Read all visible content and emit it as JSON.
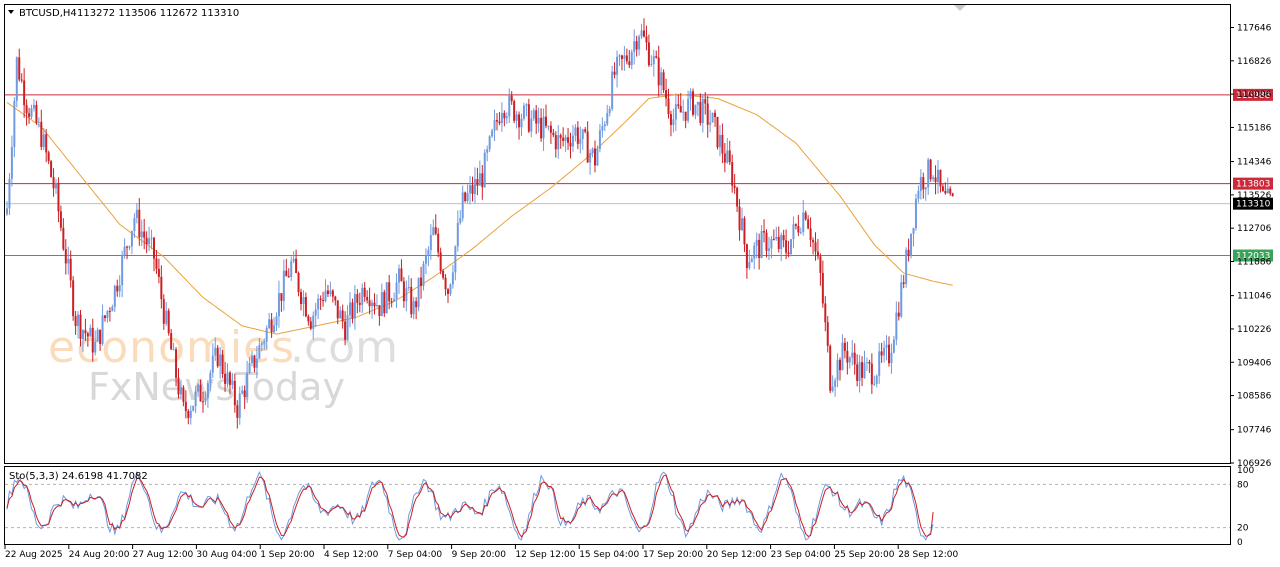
{
  "header": {
    "symbol": "BTCUSD,H4",
    "ohlc": "113272 113506 112672 113310"
  },
  "indicator": {
    "label": "Sto(5,3,3) 24.6198 41.7082"
  },
  "watermark": {
    "line1_a": "economies",
    "line1_b": ".com",
    "line2": "FxNewsToday"
  },
  "colors": {
    "bull": "#6f9ae0",
    "bear": "#cc1f24",
    "ma": "#e8a23c",
    "resistance": "#cc2a3a",
    "support": "#3aa35a",
    "current": "#c0c0c0",
    "stoch_main": "#6f9ae0",
    "stoch_signal": "#cc1f24"
  },
  "chart_data": {
    "type": "candlestick",
    "timeframe": "H4",
    "ylim": [
      106926,
      118200
    ],
    "price_ticks": [
      "117646",
      "116826",
      "116006",
      "115186",
      "114346",
      "113526",
      "112706",
      "111886",
      "111046",
      "110226",
      "109406",
      "108586",
      "107746",
      "106926"
    ],
    "time_ticks": [
      "22 Aug 2025",
      "24 Aug 20:00",
      "27 Aug 12:00",
      "30 Aug 04:00",
      "1 Sep 20:00",
      "4 Sep 12:00",
      "7 Sep 04:00",
      "9 Sep 20:00",
      "12 Sep 12:00",
      "15 Sep 04:00",
      "17 Sep 20:00",
      "20 Sep 12:00",
      "23 Sep 04:00",
      "25 Sep 20:00",
      "28 Sep 12:00"
    ],
    "levels": [
      {
        "label": "115988",
        "value": 115988,
        "kind": "resistance"
      },
      {
        "label": "113803",
        "value": 113803,
        "kind": "resistance"
      },
      {
        "label": "113310",
        "value": 113310,
        "kind": "current"
      },
      {
        "label": "112033",
        "value": 112033,
        "kind": "support"
      }
    ],
    "close_path": [
      [
        0,
        113200
      ],
      [
        4,
        116800
      ],
      [
        8,
        115800
      ],
      [
        14,
        115000
      ],
      [
        20,
        113500
      ],
      [
        28,
        110500
      ],
      [
        36,
        109800
      ],
      [
        44,
        111200
      ],
      [
        52,
        113000
      ],
      [
        60,
        112000
      ],
      [
        66,
        110000
      ],
      [
        72,
        108200
      ],
      [
        80,
        108700
      ],
      [
        86,
        109600
      ],
      [
        94,
        108300
      ],
      [
        100,
        109300
      ],
      [
        108,
        110500
      ],
      [
        116,
        111800
      ],
      [
        124,
        110500
      ],
      [
        130,
        111200
      ],
      [
        138,
        110300
      ],
      [
        146,
        111300
      ],
      [
        152,
        110800
      ],
      [
        160,
        111400
      ],
      [
        166,
        110700
      ],
      [
        174,
        112600
      ],
      [
        180,
        111200
      ],
      [
        186,
        113300
      ],
      [
        194,
        114000
      ],
      [
        202,
        115800
      ],
      [
        210,
        115500
      ],
      [
        218,
        115200
      ],
      [
        226,
        114800
      ],
      [
        232,
        115100
      ],
      [
        240,
        114400
      ],
      [
        248,
        116500
      ],
      [
        254,
        117000
      ],
      [
        258,
        117600
      ],
      [
        266,
        116500
      ],
      [
        272,
        115400
      ],
      [
        280,
        115800
      ],
      [
        288,
        115300
      ],
      [
        296,
        114000
      ],
      [
        302,
        112000
      ],
      [
        310,
        112400
      ],
      [
        318,
        112200
      ],
      [
        326,
        113200
      ],
      [
        332,
        111500
      ],
      [
        336,
        109000
      ],
      [
        342,
        109700
      ],
      [
        348,
        109200
      ],
      [
        354,
        109200
      ],
      [
        360,
        109600
      ],
      [
        366,
        111500
      ],
      [
        372,
        113800
      ],
      [
        378,
        114200
      ],
      [
        382,
        113400
      ],
      [
        386,
        113300
      ]
    ],
    "ma_path": [
      [
        0,
        115800
      ],
      [
        14,
        115200
      ],
      [
        30,
        114000
      ],
      [
        46,
        112800
      ],
      [
        64,
        112000
      ],
      [
        80,
        111000
      ],
      [
        96,
        110300
      ],
      [
        110,
        110100
      ],
      [
        126,
        110300
      ],
      [
        142,
        110500
      ],
      [
        158,
        110900
      ],
      [
        174,
        111500
      ],
      [
        190,
        112200
      ],
      [
        206,
        113000
      ],
      [
        222,
        113700
      ],
      [
        238,
        114500
      ],
      [
        252,
        115300
      ],
      [
        262,
        115900
      ],
      [
        274,
        116000
      ],
      [
        290,
        115900
      ],
      [
        306,
        115500
      ],
      [
        322,
        114800
      ],
      [
        340,
        113500
      ],
      [
        354,
        112300
      ],
      [
        366,
        111600
      ],
      [
        378,
        111400
      ],
      [
        386,
        111300
      ]
    ],
    "stochastic": {
      "params": "5,3,3",
      "main": 24.6198,
      "signal": 41.7082,
      "levels": [
        20,
        80
      ],
      "scale_ticks": [
        "100",
        "80",
        "20",
        "0"
      ]
    }
  }
}
